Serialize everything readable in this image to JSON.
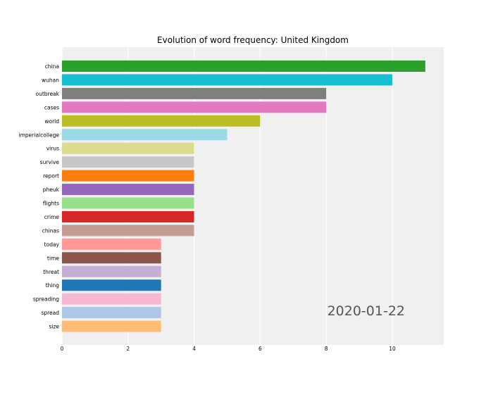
{
  "chart_data": {
    "type": "bar",
    "orientation": "horizontal",
    "title": "Evolution of word frequency: United Kingdom",
    "date_label": "2020-01-22",
    "xlim": [
      0,
      11.5
    ],
    "xticks": [
      0,
      2,
      4,
      6,
      8,
      10
    ],
    "grid": true,
    "categories": [
      "china",
      "wuhan",
      "outbreak",
      "cases",
      "world",
      "imperialcollege",
      "virus",
      "survive",
      "report",
      "pheuk",
      "flights",
      "crime",
      "chinas",
      "today",
      "time",
      "threat",
      "thing",
      "spreading",
      "spread",
      "size"
    ],
    "values": [
      11,
      10,
      8,
      8,
      6,
      5,
      4,
      4,
      4,
      4,
      4,
      4,
      4,
      3,
      3,
      3,
      3,
      3,
      3,
      3
    ],
    "colors": [
      "#2ca02c",
      "#17becf",
      "#7f7f7f",
      "#e377c2",
      "#bcbd22",
      "#9edae5",
      "#dbdb8d",
      "#c7c7c7",
      "#ff7f0e",
      "#9467bd",
      "#98df8a",
      "#d62728",
      "#c49c94",
      "#ff9896",
      "#8c564b",
      "#c5b0d5",
      "#1f77b4",
      "#f7b6d2",
      "#aec7e8",
      "#ffbb78"
    ]
  }
}
